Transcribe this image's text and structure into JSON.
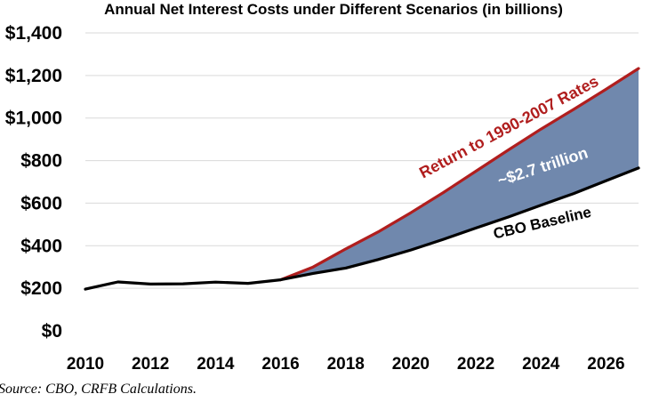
{
  "chart_data": {
    "type": "line",
    "title": "Annual Net Interest Costs under Different Scenarios (in billions)",
    "xlabel": "",
    "ylabel": "",
    "x": [
      2010,
      2011,
      2012,
      2013,
      2014,
      2015,
      2016,
      2017,
      2018,
      2019,
      2020,
      2021,
      2022,
      2023,
      2024,
      2025,
      2026,
      2027
    ],
    "xlim": [
      2010,
      2027
    ],
    "ylim": [
      0,
      1400
    ],
    "xticks": [
      2010,
      2012,
      2014,
      2016,
      2018,
      2020,
      2022,
      2024,
      2026
    ],
    "xtick_labels": [
      "2010",
      "2012",
      "2014",
      "2016",
      "2018",
      "2020",
      "2022",
      "2024",
      "2026"
    ],
    "yticks": [
      0,
      200,
      400,
      600,
      800,
      1000,
      1200,
      1400
    ],
    "ytick_labels": [
      "$0",
      "$200",
      "$400",
      "$600",
      "$800",
      "$1,000",
      "$1,200",
      "$1,400"
    ],
    "grid": "horizontal",
    "series": [
      {
        "name": "CBO Baseline",
        "color": "#000000",
        "values": [
          196,
          230,
          220,
          221,
          229,
          223,
          240,
          270,
          295,
          335,
          380,
          430,
          483,
          535,
          590,
          645,
          705,
          765
        ]
      },
      {
        "name": "Return to 1990-2007 Rates",
        "color": "#b01e1e",
        "x": [
          2016,
          2017,
          2018,
          2019,
          2020,
          2021,
          2022,
          2023,
          2024,
          2025,
          2026,
          2027
        ],
        "values": [
          240,
          300,
          385,
          465,
          555,
          650,
          750,
          850,
          948,
          1040,
          1135,
          1233
        ]
      }
    ],
    "fill_between": {
      "color": "#7088ad",
      "x_start": 2016,
      "x_end": 2027
    },
    "annotations": [
      {
        "text": "Return to 1990-2007 Rates",
        "color": "#b01e1e"
      },
      {
        "text": "~$2.7 trillion",
        "color": "#ffffff"
      },
      {
        "text": "CBO Baseline",
        "color": "#000000"
      }
    ]
  },
  "source": "Source: CBO, CRFB Calculations."
}
